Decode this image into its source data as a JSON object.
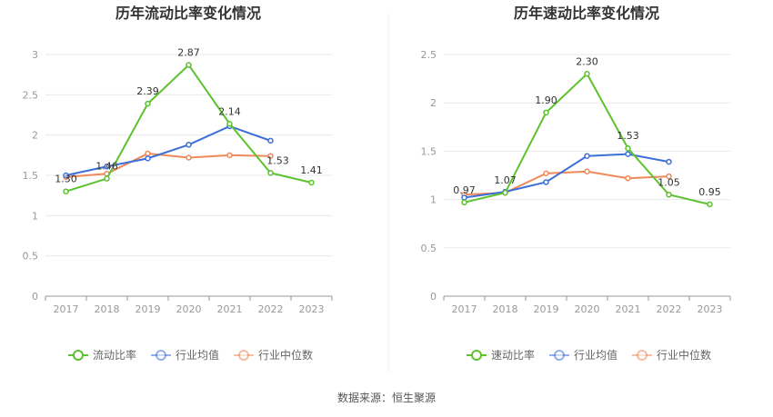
{
  "source": "数据来源：恒生聚源",
  "chart_data": [
    {
      "type": "line",
      "title": "历年流动比率变化情况",
      "categories": [
        "2017",
        "2018",
        "2019",
        "2020",
        "2021",
        "2022",
        "2023"
      ],
      "ylim": [
        0,
        3
      ],
      "yticks": [
        "0",
        "0.5",
        "1",
        "1.5",
        "2",
        "2.5",
        "3"
      ],
      "grid": true,
      "legend_position": "bottom",
      "series": [
        {
          "name": "流动比率",
          "color": "#5cc22e",
          "values": [
            1.3,
            1.46,
            2.39,
            2.87,
            2.14,
            1.53,
            1.41
          ],
          "labels": [
            "1.30",
            "1.46",
            "2.39",
            "2.87",
            "2.14",
            "1.53",
            "1.41"
          ]
        },
        {
          "name": "行业均值",
          "color": "#3d6fd8",
          "values": [
            1.5,
            1.61,
            1.71,
            1.88,
            2.11,
            1.93,
            null
          ]
        },
        {
          "name": "行业中位数",
          "color": "#f0895a",
          "values": [
            1.48,
            1.52,
            1.77,
            1.72,
            1.75,
            1.74,
            null
          ]
        }
      ]
    },
    {
      "type": "line",
      "title": "历年速动比率变化情况",
      "categories": [
        "2017",
        "2018",
        "2019",
        "2020",
        "2021",
        "2022",
        "2023"
      ],
      "ylim": [
        0,
        2.5
      ],
      "yticks": [
        "0",
        "0.5",
        "1",
        "1.5",
        "2",
        "2.5"
      ],
      "grid": true,
      "legend_position": "bottom",
      "series": [
        {
          "name": "速动比率",
          "color": "#5cc22e",
          "values": [
            0.97,
            1.07,
            1.9,
            2.3,
            1.53,
            1.05,
            0.95
          ],
          "labels": [
            "0.97",
            "1.07",
            "1.90",
            "2.30",
            "1.53",
            "1.05",
            "0.95"
          ]
        },
        {
          "name": "行业均值",
          "color": "#3d6fd8",
          "values": [
            1.02,
            1.08,
            1.18,
            1.45,
            1.47,
            1.39,
            null
          ]
        },
        {
          "name": "行业中位数",
          "color": "#f0895a",
          "values": [
            1.05,
            1.07,
            1.27,
            1.29,
            1.22,
            1.24,
            null
          ]
        }
      ]
    }
  ]
}
